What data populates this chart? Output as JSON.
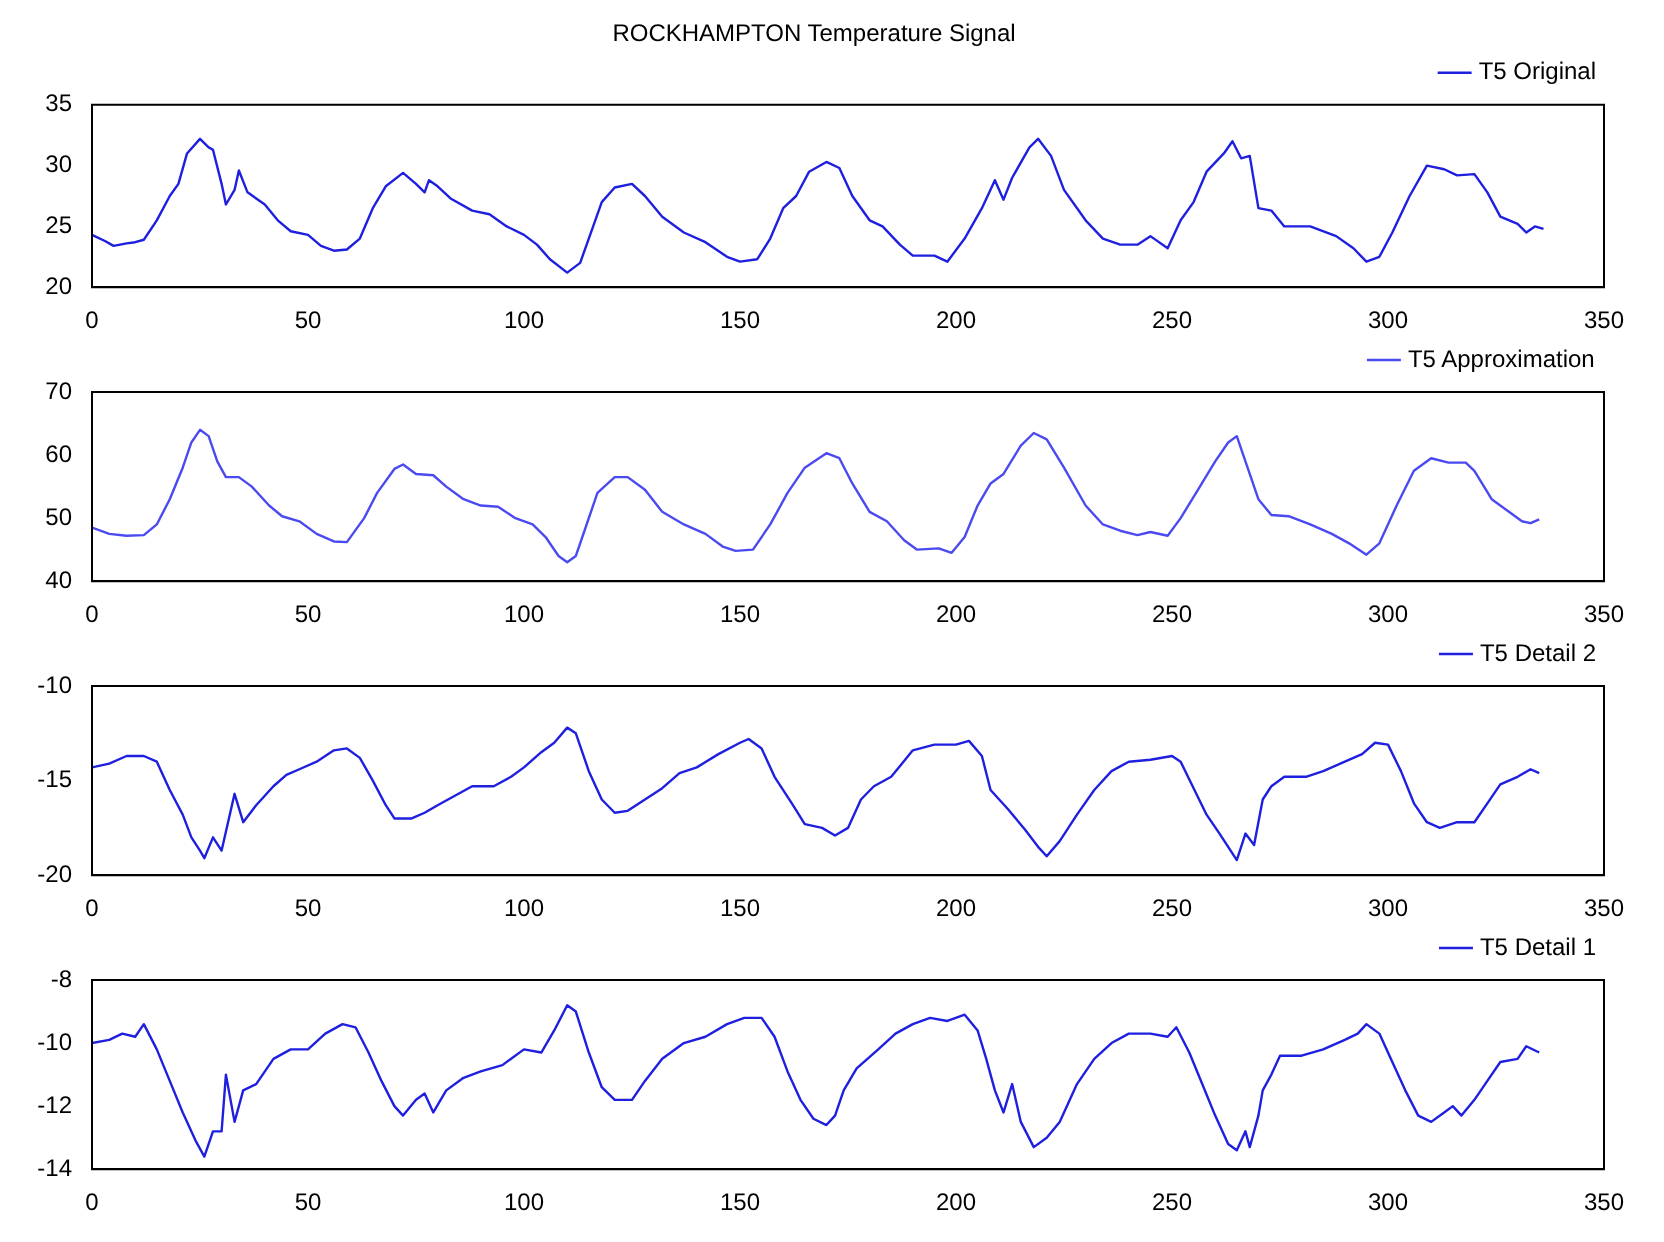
{
  "chart_data": [
    {
      "type": "line",
      "title": "ROCKHAMPTON Temperature Signal",
      "xlim": [
        0,
        350
      ],
      "xticks": [
        0,
        50,
        100,
        150,
        200,
        250,
        300,
        350
      ],
      "ylim": [
        20,
        35
      ],
      "yticks": [
        20,
        25,
        30,
        35
      ],
      "grid": false,
      "legend": "top right",
      "marker": "none",
      "line_style": "solid",
      "series": [
        {
          "name": "T5 Original",
          "color": "#1f1fe0",
          "x": [
            0,
            3,
            5,
            8,
            10,
            12,
            15,
            18,
            20,
            22,
            25,
            27,
            28,
            30,
            31,
            33,
            34,
            36,
            40,
            43,
            46,
            50,
            53,
            56,
            59,
            62,
            65,
            68,
            72,
            75,
            77,
            78,
            80,
            83,
            88,
            92,
            96,
            100,
            103,
            106,
            110,
            113,
            115,
            118,
            121,
            125,
            128,
            132,
            137,
            142,
            147,
            150,
            154,
            157,
            160,
            163,
            166,
            170,
            173,
            176,
            180,
            183,
            187,
            190,
            195,
            198,
            202,
            206,
            209,
            211,
            213,
            217,
            219,
            222,
            225,
            230,
            234,
            238,
            242,
            245,
            249,
            252,
            255,
            258,
            262,
            264,
            266,
            268,
            270,
            273,
            276,
            282,
            288,
            292,
            295,
            298,
            301,
            305,
            309,
            313,
            316,
            320,
            323,
            326,
            330,
            332,
            334,
            336
          ],
          "values": [
            24.3,
            23.8,
            23.4,
            23.6,
            23.7,
            23.9,
            25.5,
            27.5,
            28.5,
            31,
            32.2,
            31.5,
            31.3,
            28.5,
            26.8,
            28,
            29.6,
            27.8,
            26.8,
            25.5,
            24.6,
            24.3,
            23.4,
            23,
            23.1,
            24,
            26.5,
            28.3,
            29.4,
            28.5,
            27.8,
            28.8,
            28.3,
            27.3,
            26.3,
            26,
            25,
            24.3,
            23.5,
            22.3,
            21.2,
            22,
            24,
            27,
            28.2,
            28.5,
            27.5,
            25.8,
            24.5,
            23.7,
            22.5,
            22.1,
            22.3,
            24,
            26.5,
            27.5,
            29.5,
            30.3,
            29.8,
            27.5,
            25.5,
            25,
            23.5,
            22.6,
            22.6,
            22.1,
            24,
            26.5,
            28.8,
            27.2,
            29,
            31.5,
            32.2,
            30.8,
            28,
            25.5,
            24,
            23.5,
            23.5,
            24.2,
            23.2,
            25.5,
            27,
            29.5,
            31,
            32,
            30.6,
            30.8,
            26.5,
            26.3,
            25,
            25,
            24.2,
            23.2,
            22.1,
            22.5,
            24.5,
            27.5,
            30,
            29.7,
            29.2,
            29.3,
            27.8,
            25.8,
            25.2,
            24.5,
            25,
            24.8
          ]
        }
      ]
    },
    {
      "type": "line",
      "xlim": [
        0,
        350
      ],
      "xticks": [
        0,
        50,
        100,
        150,
        200,
        250,
        300,
        350
      ],
      "ylim": [
        40,
        70
      ],
      "yticks": [
        40,
        50,
        60,
        70
      ],
      "grid": false,
      "legend": "top right",
      "marker": "none",
      "line_style": "solid",
      "series": [
        {
          "name": "T5 Approximation",
          "color": "#4a4af0",
          "x": [
            0,
            4,
            8,
            12,
            15,
            18,
            21,
            23,
            25,
            27,
            29,
            31,
            34,
            37,
            41,
            44,
            48,
            52,
            56,
            59,
            63,
            66,
            70,
            72,
            75,
            79,
            82,
            86,
            90,
            94,
            98,
            102,
            105,
            108,
            110,
            112,
            114,
            117,
            121,
            124,
            128,
            132,
            137,
            142,
            146,
            149,
            153,
            157,
            161,
            165,
            170,
            173,
            176,
            180,
            184,
            188,
            191,
            196,
            199,
            202,
            205,
            208,
            211,
            215,
            218,
            221,
            225,
            230,
            234,
            238,
            242,
            245,
            249,
            252,
            256,
            260,
            263,
            265,
            267,
            270,
            273,
            277,
            282,
            287,
            291,
            295,
            298,
            302,
            306,
            310,
            314,
            318,
            320,
            324,
            328,
            331,
            333,
            335
          ],
          "values": [
            48.5,
            47.5,
            47.2,
            47.3,
            49,
            53,
            58,
            62,
            64,
            63,
            59,
            56.5,
            56.5,
            55,
            52,
            50.3,
            49.5,
            47.5,
            46.3,
            46.2,
            50,
            54,
            57.8,
            58.5,
            57,
            56.8,
            55,
            53,
            52,
            51.8,
            50,
            49,
            47,
            44,
            43,
            44,
            48,
            54,
            56.5,
            56.5,
            54.5,
            51,
            49,
            47.5,
            45.5,
            44.8,
            45,
            49,
            54,
            58,
            60.3,
            59.5,
            55.5,
            51,
            49.5,
            46.5,
            45,
            45.2,
            44.5,
            47,
            52,
            55.5,
            57,
            61.5,
            63.5,
            62.5,
            58,
            52,
            49,
            48,
            47.3,
            47.8,
            47.2,
            50,
            54.5,
            59,
            62,
            63,
            59,
            53,
            50.5,
            50.3,
            49,
            47.5,
            46,
            44.2,
            46,
            52,
            57.5,
            59.5,
            58.8,
            58.8,
            57.5,
            53,
            51,
            49.5,
            49.2,
            49.8
          ]
        }
      ]
    },
    {
      "type": "line",
      "xlim": [
        0,
        350
      ],
      "xticks": [
        0,
        50,
        100,
        150,
        200,
        250,
        300,
        350
      ],
      "ylim": [
        -20,
        -10
      ],
      "yticks": [
        -20,
        -15,
        -10
      ],
      "grid": false,
      "legend": "top right",
      "marker": "none",
      "line_style": "solid",
      "series": [
        {
          "name": "T5 Detail 2",
          "color": "#1f1fe0",
          "x": [
            0,
            4,
            8,
            12,
            15,
            18,
            21,
            23,
            25,
            26,
            28,
            30,
            32,
            33,
            35,
            38,
            42,
            45,
            48,
            52,
            56,
            59,
            62,
            65,
            68,
            70,
            74,
            77,
            80,
            84,
            88,
            93,
            97,
            100,
            104,
            107,
            110,
            112,
            115,
            118,
            121,
            124,
            128,
            132,
            136,
            140,
            145,
            150,
            152,
            155,
            158,
            162,
            165,
            169,
            172,
            175,
            178,
            181,
            185,
            190,
            195,
            200,
            203,
            206,
            208,
            212,
            216,
            219,
            221,
            224,
            228,
            232,
            236,
            240,
            245,
            250,
            252,
            255,
            258,
            261,
            263,
            265,
            267,
            269,
            271,
            273,
            276,
            281,
            285,
            290,
            294,
            297,
            300,
            303,
            306,
            309,
            312,
            316,
            320,
            323,
            326,
            330,
            333,
            335
          ],
          "values": [
            -14.3,
            -14.1,
            -13.7,
            -13.7,
            -14,
            -15.5,
            -16.8,
            -18,
            -18.7,
            -19.1,
            -18,
            -18.7,
            -16.7,
            -15.7,
            -17.2,
            -16.3,
            -15.3,
            -14.7,
            -14.4,
            -14,
            -13.4,
            -13.3,
            -13.8,
            -15,
            -16.3,
            -17,
            -17,
            -16.7,
            -16.3,
            -15.8,
            -15.3,
            -15.3,
            -14.8,
            -14.3,
            -13.5,
            -13,
            -12.2,
            -12.5,
            -14.5,
            -16,
            -16.7,
            -16.6,
            -16,
            -15.4,
            -14.6,
            -14.3,
            -13.6,
            -13,
            -12.8,
            -13.3,
            -14.8,
            -16.2,
            -17.3,
            -17.5,
            -17.9,
            -17.5,
            -16,
            -15.3,
            -14.8,
            -13.4,
            -13.1,
            -13.1,
            -12.9,
            -13.7,
            -15.5,
            -16.5,
            -17.6,
            -18.5,
            -19,
            -18.2,
            -16.8,
            -15.5,
            -14.5,
            -14,
            -13.9,
            -13.7,
            -14,
            -15.4,
            -16.8,
            -17.8,
            -18.5,
            -19.2,
            -17.8,
            -18.4,
            -16,
            -15.3,
            -14.8,
            -14.8,
            -14.5,
            -14,
            -13.6,
            -13,
            -13.1,
            -14.5,
            -16.2,
            -17.2,
            -17.5,
            -17.2,
            -17.2,
            -16.2,
            -15.2,
            -14.8,
            -14.4,
            -14.6
          ]
        }
      ]
    },
    {
      "type": "line",
      "xlim": [
        0,
        350
      ],
      "xticks": [
        0,
        50,
        100,
        150,
        200,
        250,
        300,
        350
      ],
      "ylim": [
        -14,
        -8
      ],
      "yticks": [
        -14,
        -12,
        -10,
        -8
      ],
      "grid": false,
      "legend": "top right",
      "marker": "none",
      "line_style": "solid",
      "series": [
        {
          "name": "T5 Detail 1",
          "color": "#1f1fe0",
          "x": [
            0,
            4,
            7,
            10,
            12,
            15,
            18,
            21,
            24,
            26,
            28,
            30,
            31,
            33,
            35,
            38,
            42,
            46,
            50,
            54,
            58,
            61,
            64,
            67,
            70,
            72,
            75,
            77,
            79,
            82,
            86,
            90,
            95,
            100,
            104,
            107,
            110,
            112,
            115,
            118,
            121,
            125,
            128,
            132,
            137,
            142,
            147,
            151,
            155,
            158,
            161,
            164,
            167,
            170,
            172,
            174,
            177,
            182,
            186,
            190,
            194,
            198,
            202,
            205,
            207,
            209,
            211,
            213,
            215,
            218,
            221,
            224,
            228,
            232,
            236,
            240,
            245,
            249,
            251,
            254,
            257,
            260,
            263,
            265,
            267,
            268,
            270,
            271,
            273,
            275,
            280,
            285,
            290,
            293,
            295,
            298,
            301,
            304,
            307,
            310,
            313,
            315,
            317,
            320,
            323,
            326,
            330,
            332,
            335
          ],
          "values": [
            -10,
            -9.9,
            -9.7,
            -9.8,
            -9.4,
            -10.2,
            -11.2,
            -12.2,
            -13.1,
            -13.6,
            -12.8,
            -12.8,
            -11,
            -12.5,
            -11.5,
            -11.3,
            -10.5,
            -10.2,
            -10.2,
            -9.7,
            -9.4,
            -9.5,
            -10.3,
            -11.2,
            -12,
            -12.3,
            -11.8,
            -11.6,
            -12.2,
            -11.5,
            -11.1,
            -10.9,
            -10.7,
            -10.2,
            -10.3,
            -9.6,
            -8.8,
            -9,
            -10.3,
            -11.4,
            -11.8,
            -11.8,
            -11.2,
            -10.5,
            -10,
            -9.8,
            -9.4,
            -9.2,
            -9.2,
            -9.8,
            -10.9,
            -11.8,
            -12.4,
            -12.6,
            -12.3,
            -11.5,
            -10.8,
            -10.2,
            -9.7,
            -9.4,
            -9.2,
            -9.3,
            -9.1,
            -9.6,
            -10.5,
            -11.5,
            -12.2,
            -11.3,
            -12.5,
            -13.3,
            -13,
            -12.5,
            -11.3,
            -10.5,
            -10,
            -9.7,
            -9.7,
            -9.8,
            -9.5,
            -10.3,
            -11.3,
            -12.3,
            -13.2,
            -13.4,
            -12.8,
            -13.3,
            -12.3,
            -11.5,
            -11,
            -10.4,
            -10.4,
            -10.2,
            -9.9,
            -9.7,
            -9.4,
            -9.7,
            -10.6,
            -11.5,
            -12.3,
            -12.5,
            -12.2,
            -12,
            -12.3,
            -11.8,
            -11.2,
            -10.6,
            -10.5,
            -10.1,
            -10.3
          ]
        }
      ]
    }
  ]
}
